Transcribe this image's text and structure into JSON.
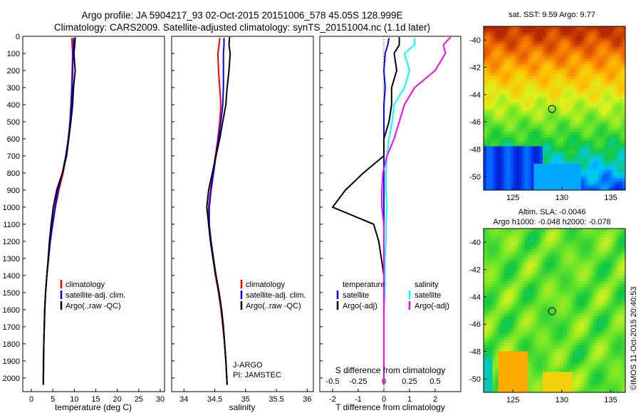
{
  "title": {
    "line1": "Argo profile: JA 5904217_93 02-Oct-2015 20151006_578 45.05S 128.999E",
    "line2": "Climatology: CARS2009. Satellite-adjusted climatology: synTS_20151004.nc (1.1d later)"
  },
  "watermark": "©IMOS 11-Oct-2015 20:40:53",
  "colors": {
    "climatology": "#ff0000",
    "satellite": "#0000ff",
    "argo": "#000000",
    "sat_salinity": "#00ffff",
    "argo_salinity_adj": "#ff00ff"
  },
  "chart_data": [
    {
      "type": "line",
      "id": "temperature",
      "xlabel": "temperature (deg C)",
      "ylabel": "",
      "xlim": [
        -2,
        31
      ],
      "ylim": [
        2080,
        0
      ],
      "xticks": [
        "0",
        "5",
        "10",
        "15",
        "20",
        "25",
        "30"
      ],
      "yticks": [
        "0",
        "100",
        "200",
        "300",
        "400",
        "500",
        "600",
        "700",
        "800",
        "900",
        "1000",
        "1100",
        "1200",
        "1300",
        "1400",
        "1500",
        "1600",
        "1700",
        "1800",
        "1900",
        "2000"
      ],
      "legend": [
        "climatology",
        "satellite-adj. clim.",
        "Argo(..raw -QC)"
      ],
      "series": [
        {
          "name": "climatology",
          "x": [
            9.4,
            9.5,
            9.6,
            9.5,
            9.4,
            9.2,
            9.0,
            8.6,
            8.1,
            7.4,
            6.4,
            5.6,
            5.0,
            4.4,
            4.0,
            3.6,
            3.3,
            3.1,
            3.0,
            2.9,
            2.8,
            2.75
          ],
          "y": [
            10,
            50,
            100,
            200,
            300,
            400,
            500,
            600,
            700,
            800,
            900,
            1000,
            1100,
            1200,
            1300,
            1400,
            1500,
            1600,
            1700,
            1800,
            1900,
            2040
          ]
        },
        {
          "name": "satellite-adj. clim.",
          "x": [
            9.8,
            9.8,
            9.7,
            9.6,
            9.5,
            9.3,
            9.0,
            8.6,
            8.0,
            7.2,
            6.2,
            5.5,
            4.9,
            4.4,
            4.0,
            3.6,
            3.3,
            3.1,
            3.0,
            2.9,
            2.85,
            2.8
          ],
          "y": [
            10,
            50,
            100,
            200,
            300,
            400,
            500,
            600,
            700,
            800,
            900,
            1000,
            1100,
            1200,
            1300,
            1400,
            1500,
            1600,
            1700,
            1800,
            1900,
            2040
          ]
        },
        {
          "name": "Argo(..raw -QC)",
          "x": [
            10.2,
            10.1,
            9.9,
            10.2,
            9.8,
            9.6,
            9.2,
            8.7,
            8.2,
            7.2,
            5.9,
            5.1,
            4.6,
            4.2,
            3.9,
            3.6,
            3.3,
            3.1,
            3.0,
            2.9,
            2.85,
            2.8
          ],
          "y": [
            5,
            50,
            100,
            200,
            300,
            400,
            500,
            600,
            700,
            800,
            900,
            1000,
            1100,
            1200,
            1300,
            1400,
            1500,
            1600,
            1700,
            1800,
            1900,
            2040
          ]
        }
      ]
    },
    {
      "type": "line",
      "id": "salinity",
      "xlabel": "salinity",
      "xlim": [
        33.8,
        36.1
      ],
      "ylim": [
        2080,
        0
      ],
      "xticks": [
        "34",
        "34.5",
        "35",
        "35.5",
        "36"
      ],
      "legend": [
        "climatology",
        "satellite-adj. clim.",
        "Argo(..raw -QC)"
      ],
      "annotation": [
        "J-ARGO",
        "PI: JAMSTEC"
      ],
      "series": [
        {
          "name": "climatology",
          "x": [
            34.58,
            34.57,
            34.55,
            34.56,
            34.58,
            34.6,
            34.58,
            34.55,
            34.51,
            34.47,
            34.43,
            34.4,
            34.4,
            34.43,
            34.47,
            34.51,
            34.56,
            34.6,
            34.63,
            34.66,
            34.68,
            34.7
          ],
          "y": [
            10,
            50,
            100,
            200,
            300,
            400,
            500,
            600,
            700,
            800,
            900,
            1000,
            1100,
            1200,
            1300,
            1400,
            1500,
            1600,
            1700,
            1800,
            1900,
            2040
          ]
        },
        {
          "name": "satellite-adj. clim.",
          "x": [
            34.65,
            34.65,
            34.64,
            34.64,
            34.64,
            34.63,
            34.6,
            34.56,
            34.52,
            34.48,
            34.44,
            34.41,
            34.41,
            34.44,
            34.48,
            34.52,
            34.57,
            34.61,
            34.64,
            34.66,
            34.68,
            34.7
          ],
          "y": [
            10,
            50,
            100,
            200,
            300,
            400,
            500,
            600,
            700,
            800,
            900,
            1000,
            1100,
            1200,
            1300,
            1400,
            1500,
            1600,
            1700,
            1800,
            1900,
            2040
          ]
        },
        {
          "name": "Argo(..raw -QC)",
          "x": [
            34.74,
            34.73,
            34.75,
            34.73,
            34.7,
            34.68,
            34.63,
            34.58,
            34.52,
            34.46,
            34.4,
            34.37,
            34.4,
            34.43,
            34.47,
            34.52,
            34.57,
            34.61,
            34.64,
            34.66,
            34.68,
            34.7
          ],
          "y": [
            5,
            50,
            100,
            200,
            300,
            400,
            500,
            600,
            700,
            800,
            900,
            1000,
            1100,
            1200,
            1300,
            1400,
            1500,
            1600,
            1700,
            1800,
            1900,
            2040
          ]
        }
      ]
    },
    {
      "type": "line",
      "id": "difference",
      "xlabel": "T difference from climatology",
      "xlabel_top": "S difference from climatology",
      "xlim": [
        -2.5,
        3.0
      ],
      "ylim": [
        2080,
        0
      ],
      "xticks": [
        "-2",
        "-1",
        "0",
        "1",
        "2"
      ],
      "xticks_s": [
        "-0.5",
        "-0.25",
        "0",
        "0.25",
        "0.5"
      ],
      "legend_title_t": "temperature",
      "legend_title_s": "salinity",
      "legend": [
        "satellite",
        "Argo(-adj)",
        "satellite",
        "Argo(-adj)"
      ],
      "series": [
        {
          "name": "T satellite",
          "x": [
            0.2,
            0.15,
            0.05,
            0.0,
            0.05,
            0.0,
            0.0,
            0.0,
            0.0,
            0.0,
            0.0,
            0.0,
            0.0,
            0.0,
            0.0,
            0.0,
            0.0,
            0.0,
            0.0,
            0.0,
            0.0,
            0.0
          ],
          "y": [
            10,
            50,
            100,
            200,
            300,
            400,
            500,
            600,
            700,
            800,
            900,
            1000,
            1100,
            1200,
            1300,
            1400,
            1500,
            1600,
            1700,
            1800,
            1900,
            2040
          ]
        },
        {
          "name": "T Argo(-adj)",
          "x": [
            0.6,
            0.6,
            0.4,
            0.5,
            0.3,
            0.3,
            0.2,
            0.0,
            0.0,
            -0.8,
            -1.5,
            -2.0,
            -0.4,
            -0.2,
            -0.1,
            0.0,
            0.0,
            0.0,
            0.0,
            0.0,
            0.0,
            0.0
          ],
          "y": [
            5,
            50,
            100,
            200,
            300,
            400,
            500,
            600,
            700,
            800,
            900,
            1000,
            1100,
            1200,
            1300,
            1400,
            1500,
            1600,
            1700,
            1800,
            1900,
            2040
          ]
        },
        {
          "name": "S satellite",
          "x": [
            0.3,
            0.3,
            0.2,
            0.25,
            0.2,
            0.1,
            0.08,
            0.05,
            0.03,
            0.02,
            0.02,
            0.03,
            0.02,
            0.02,
            0.01,
            0.01,
            0.01,
            0.0,
            0.0,
            0.0,
            0.0,
            0.0
          ],
          "y": [
            10,
            50,
            100,
            200,
            300,
            400,
            500,
            600,
            700,
            800,
            900,
            1000,
            1100,
            1200,
            1300,
            1400,
            1500,
            1600,
            1700,
            1800,
            1900,
            2040
          ]
        },
        {
          "name": "S Argo(-adj)",
          "x": [
            0.65,
            0.58,
            0.6,
            0.5,
            0.3,
            0.2,
            0.15,
            0.1,
            0.03,
            -0.01,
            -0.02,
            -0.02,
            0.0,
            0.0,
            0.0,
            0.0,
            0.0,
            0.0,
            0.0,
            0.0,
            0.0,
            0.0
          ],
          "y": [
            5,
            50,
            100,
            200,
            300,
            400,
            500,
            600,
            700,
            800,
            900,
            1000,
            1100,
            1200,
            1300,
            1400,
            1500,
            1600,
            1700,
            1800,
            1900,
            2040
          ]
        }
      ]
    },
    {
      "type": "heatmap",
      "id": "sst",
      "title": "sat. SST: 9.59  Argo: 9.77",
      "xlim": [
        122,
        136.5
      ],
      "ylim": [
        -51,
        -39
      ],
      "xticks": [
        "125",
        "130",
        "135"
      ],
      "yticks": [
        "-40",
        "-42",
        "-44",
        "-46",
        "-48",
        "-50"
      ],
      "marker": {
        "lon": 129.0,
        "lat": -45.05
      }
    },
    {
      "type": "heatmap",
      "id": "sla",
      "title": "Altim. SLA: -0.0046",
      "subtitle": "Argo h1000: -0.048 h2000: -0.078",
      "xlim": [
        122,
        136.5
      ],
      "ylim": [
        -51,
        -39
      ],
      "xticks": [
        "125",
        "130",
        "135"
      ],
      "yticks": [
        "-40",
        "-42",
        "-44",
        "-46",
        "-48",
        "-50"
      ],
      "marker": {
        "lon": 129.0,
        "lat": -45.05
      }
    }
  ]
}
